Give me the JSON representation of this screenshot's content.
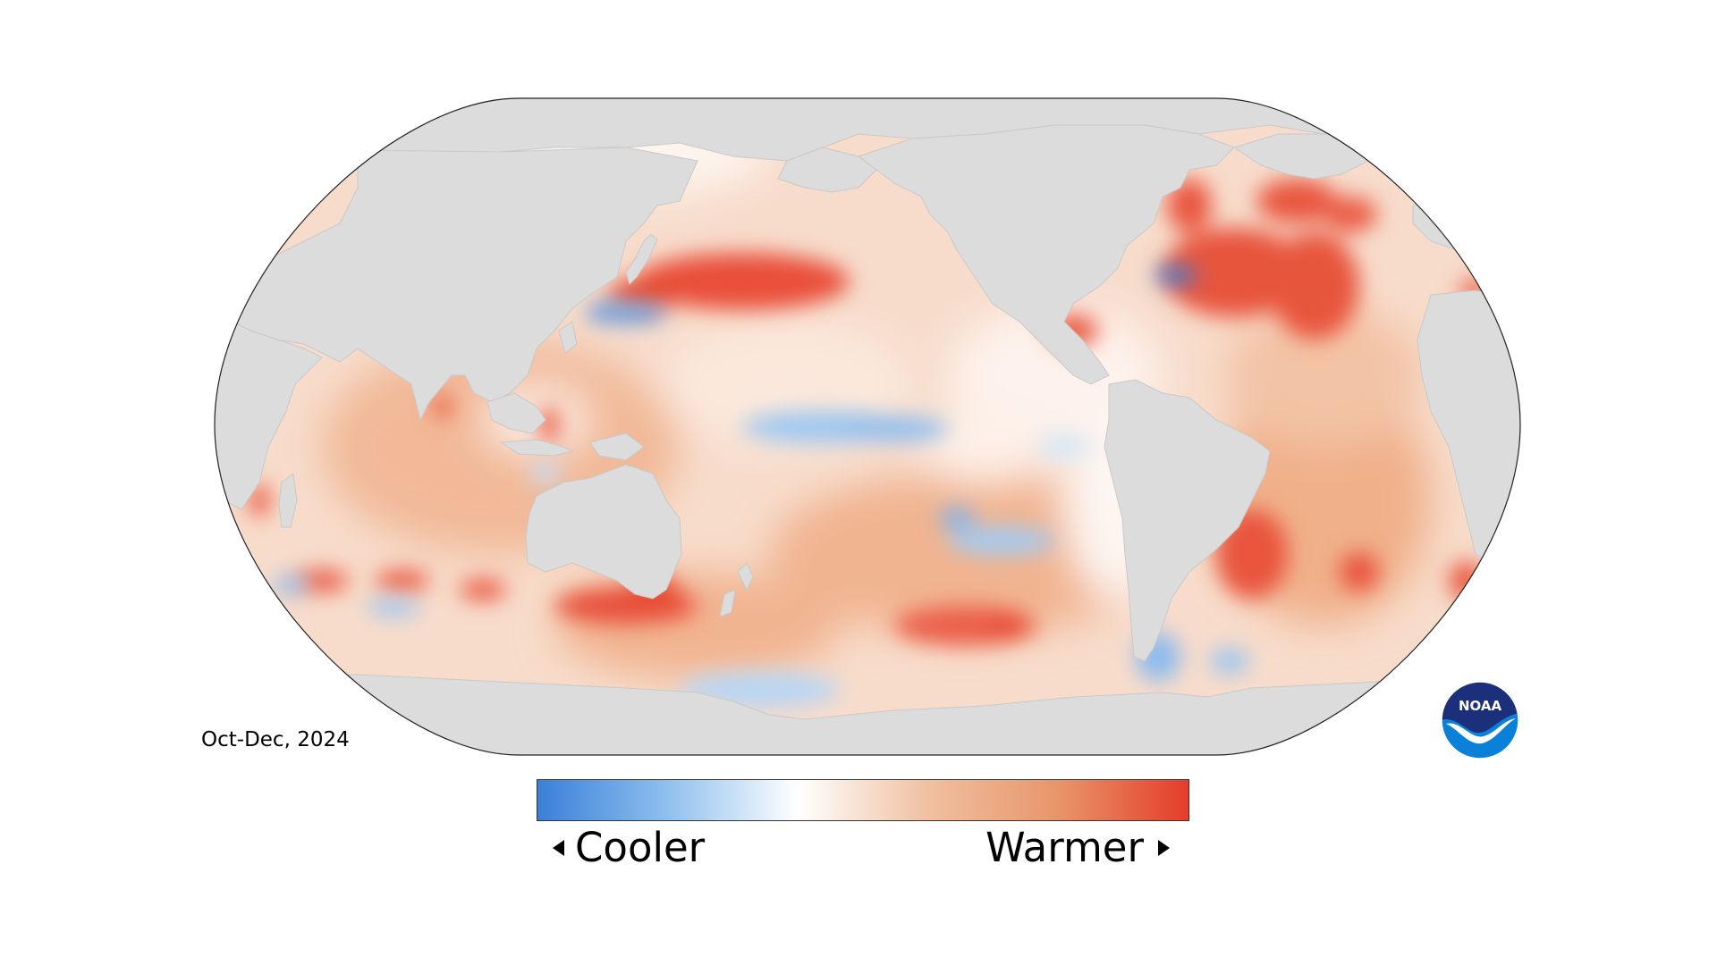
{
  "period_label": "Oct-Dec, 2024",
  "legend": {
    "low_label": "Cooler",
    "high_label": "Warmer",
    "colors": [
      "#3a7fd8",
      "#8fc0ee",
      "#ffffff",
      "#f0c0a0",
      "#e8956a",
      "#e53c2a"
    ]
  },
  "logo": {
    "text": "NOAA",
    "colors": {
      "top": "#1b2f7a",
      "bottom": "#0a80d8"
    }
  },
  "map": {
    "land_color": "#dcdcdc",
    "ocean_base": "#f6d8c6",
    "anomalies": [
      {
        "region": "north-pacific",
        "level": "very-warm"
      },
      {
        "region": "north-atlantic",
        "level": "very-warm"
      },
      {
        "region": "south-pacific-midlatitude",
        "level": "very-warm"
      },
      {
        "region": "tasman-sea",
        "level": "very-warm"
      },
      {
        "region": "south-atlantic",
        "level": "very-warm"
      },
      {
        "region": "equatorial-pacific",
        "level": "cool"
      },
      {
        "region": "southeast-pacific",
        "level": "cool"
      },
      {
        "region": "kuroshio",
        "level": "cool"
      },
      {
        "region": "drake-passage",
        "level": "cool"
      },
      {
        "region": "southern-ocean-south-of-new-zealand",
        "level": "cool"
      }
    ]
  }
}
